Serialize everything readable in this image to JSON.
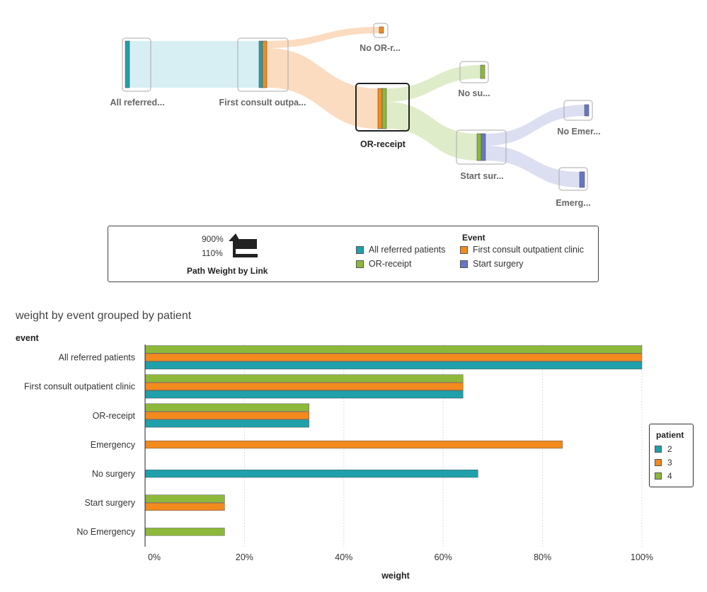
{
  "colors": {
    "all_referred": "#1fa0aa",
    "first_consult": "#f28a1e",
    "or_receipt": "#8db83a",
    "start_surgery": "#6677c2"
  },
  "sankey": {
    "nodes": [
      {
        "id": "all",
        "label": "All referred...",
        "event": "all_referred"
      },
      {
        "id": "first",
        "label": "First consult outpa...",
        "event": "first_consult"
      },
      {
        "id": "noor",
        "label": "No OR-r...",
        "event": "first_consult"
      },
      {
        "id": "or",
        "label": "OR-receipt",
        "event": "or_receipt",
        "selected": true
      },
      {
        "id": "nosu",
        "label": "No su...",
        "event": "or_receipt"
      },
      {
        "id": "start",
        "label": "Start sur...",
        "event": "start_surgery"
      },
      {
        "id": "noem",
        "label": "No Emer...",
        "event": "start_surgery"
      },
      {
        "id": "emerg",
        "label": "Emerg...",
        "event": "start_surgery"
      }
    ],
    "links": [
      {
        "from": "all",
        "to": "first",
        "color": "all_referred"
      },
      {
        "from": "first",
        "to": "noor",
        "color": "first_consult"
      },
      {
        "from": "first",
        "to": "or",
        "color": "first_consult"
      },
      {
        "from": "or",
        "to": "nosu",
        "color": "or_receipt"
      },
      {
        "from": "or",
        "to": "start",
        "color": "or_receipt"
      },
      {
        "from": "start",
        "to": "noem",
        "color": "start_surgery"
      },
      {
        "from": "start",
        "to": "emerg",
        "color": "start_surgery"
      }
    ]
  },
  "legend": {
    "weight_max": "900%",
    "weight_min": "110%",
    "weight_title": "Path Weight by Link",
    "event_title": "Event",
    "items": [
      {
        "label": "All referred patients",
        "color": "#1fa0aa"
      },
      {
        "label": "First consult outpatient clinic",
        "color": "#f28a1e"
      },
      {
        "label": "OR-receipt",
        "color": "#8db83a"
      },
      {
        "label": "Start surgery",
        "color": "#6677c2"
      }
    ]
  },
  "chart_data": {
    "type": "bar",
    "orientation": "horizontal",
    "title": "weight by event grouped by patient",
    "ylabel": "event",
    "xlabel": "weight",
    "xlim": [
      0,
      100
    ],
    "x_ticks": [
      "0%",
      "20%",
      "40%",
      "60%",
      "80%",
      "100%"
    ],
    "categories": [
      "All referred patients",
      "First consult outpatient clinic",
      "OR-receipt",
      "Emergency",
      "No surgery",
      "Start surgery",
      "No Emergency"
    ],
    "series": [
      {
        "name": "2",
        "color": "#1fa0aa",
        "values": [
          100,
          64,
          33,
          null,
          67,
          null,
          null
        ]
      },
      {
        "name": "3",
        "color": "#f28a1e",
        "values": [
          100,
          64,
          33,
          84,
          null,
          16,
          null
        ]
      },
      {
        "name": "4",
        "color": "#8db83a",
        "values": [
          100,
          64,
          33,
          null,
          null,
          16,
          16
        ]
      }
    ],
    "legend_title": "patient",
    "grid": true
  }
}
